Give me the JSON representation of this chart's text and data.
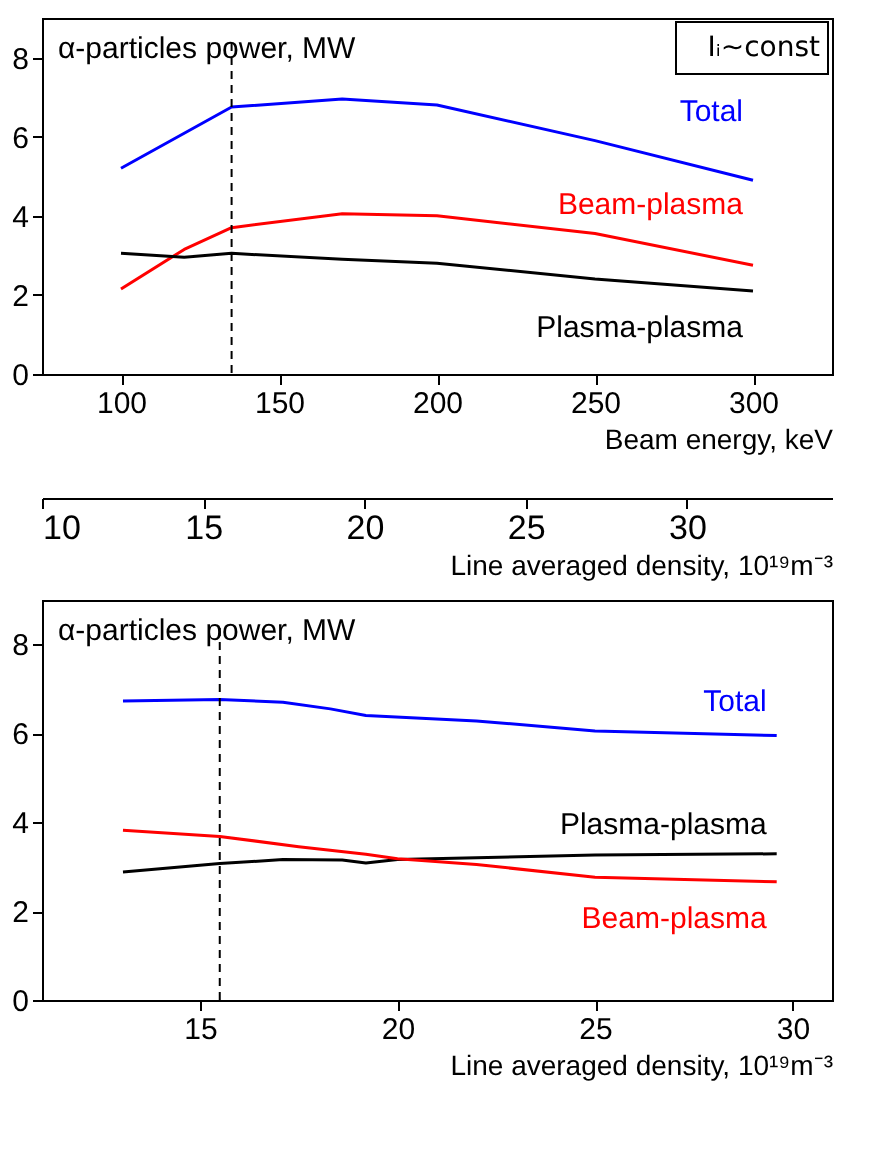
{
  "chart_data": [
    {
      "type": "line",
      "ylabel": "α-particles power, MW",
      "xlabel": "Beam energy, keV",
      "x2label": "Line averaged density, 10¹⁹m⁻³",
      "annotations": [
        "Iᵢ~const"
      ],
      "xlim": [
        75,
        325
      ],
      "xticks": [
        100,
        150,
        200,
        250,
        300
      ],
      "x2lim": [
        10,
        34.5
      ],
      "x2ticks": [
        10,
        15,
        20,
        25,
        30
      ],
      "ylim": [
        0,
        9
      ],
      "yticks": [
        0,
        2,
        4,
        6,
        8
      ],
      "grid": false,
      "legend": false,
      "ref_lines": [
        {
          "axis": "x",
          "value": 135,
          "color": "#000000",
          "line_style": "dashed"
        }
      ],
      "series": [
        {
          "name": "Total",
          "color": "#0000ff",
          "x": [
            100,
            135,
            170,
            200,
            250,
            300
          ],
          "values": [
            5.2,
            6.75,
            6.95,
            6.8,
            5.9,
            4.9
          ]
        },
        {
          "name": "Beam-plasma",
          "color": "#ff0000",
          "x": [
            100,
            120,
            135,
            170,
            200,
            250,
            300
          ],
          "values": [
            2.15,
            3.15,
            3.7,
            4.05,
            4.0,
            3.55,
            2.75
          ]
        },
        {
          "name": "Plasma-plasma",
          "color": "#000000",
          "x": [
            100,
            120,
            135,
            170,
            200,
            250,
            300
          ],
          "values": [
            3.05,
            2.95,
            3.05,
            2.9,
            2.8,
            2.4,
            2.1
          ]
        }
      ]
    },
    {
      "type": "line",
      "ylabel": "α-particles power, MW",
      "xlabel": "Line averaged density, 10¹⁹m⁻³",
      "xlim": [
        11,
        31
      ],
      "xticks": [
        15,
        20,
        25,
        30
      ],
      "ylim": [
        0,
        9
      ],
      "yticks": [
        0,
        2,
        4,
        6,
        8
      ],
      "grid": false,
      "legend": false,
      "ref_lines": [
        {
          "axis": "x",
          "value": 15.5,
          "color": "#000000",
          "line_style": "dashed"
        }
      ],
      "series": [
        {
          "name": "Total",
          "color": "#0000ff",
          "x": [
            13.05,
            15.5,
            17.1,
            18.3,
            19.2,
            22,
            25,
            29.6
          ],
          "values": [
            6.73,
            6.76,
            6.7,
            6.55,
            6.4,
            6.28,
            6.05,
            5.95
          ]
        },
        {
          "name": "Plasma-plasma",
          "color": "#000000",
          "x": [
            13.05,
            15.5,
            17.1,
            18.6,
            19.2,
            20,
            25,
            29.6
          ],
          "values": [
            2.88,
            3.07,
            3.16,
            3.15,
            3.08,
            3.16,
            3.26,
            3.29
          ]
        },
        {
          "name": "Beam-plasma",
          "color": "#ff0000",
          "x": [
            13.05,
            15.5,
            17.5,
            19.2,
            20,
            22,
            25,
            29.6
          ],
          "values": [
            3.82,
            3.68,
            3.45,
            3.28,
            3.18,
            3.05,
            2.76,
            2.66
          ]
        }
      ]
    }
  ]
}
